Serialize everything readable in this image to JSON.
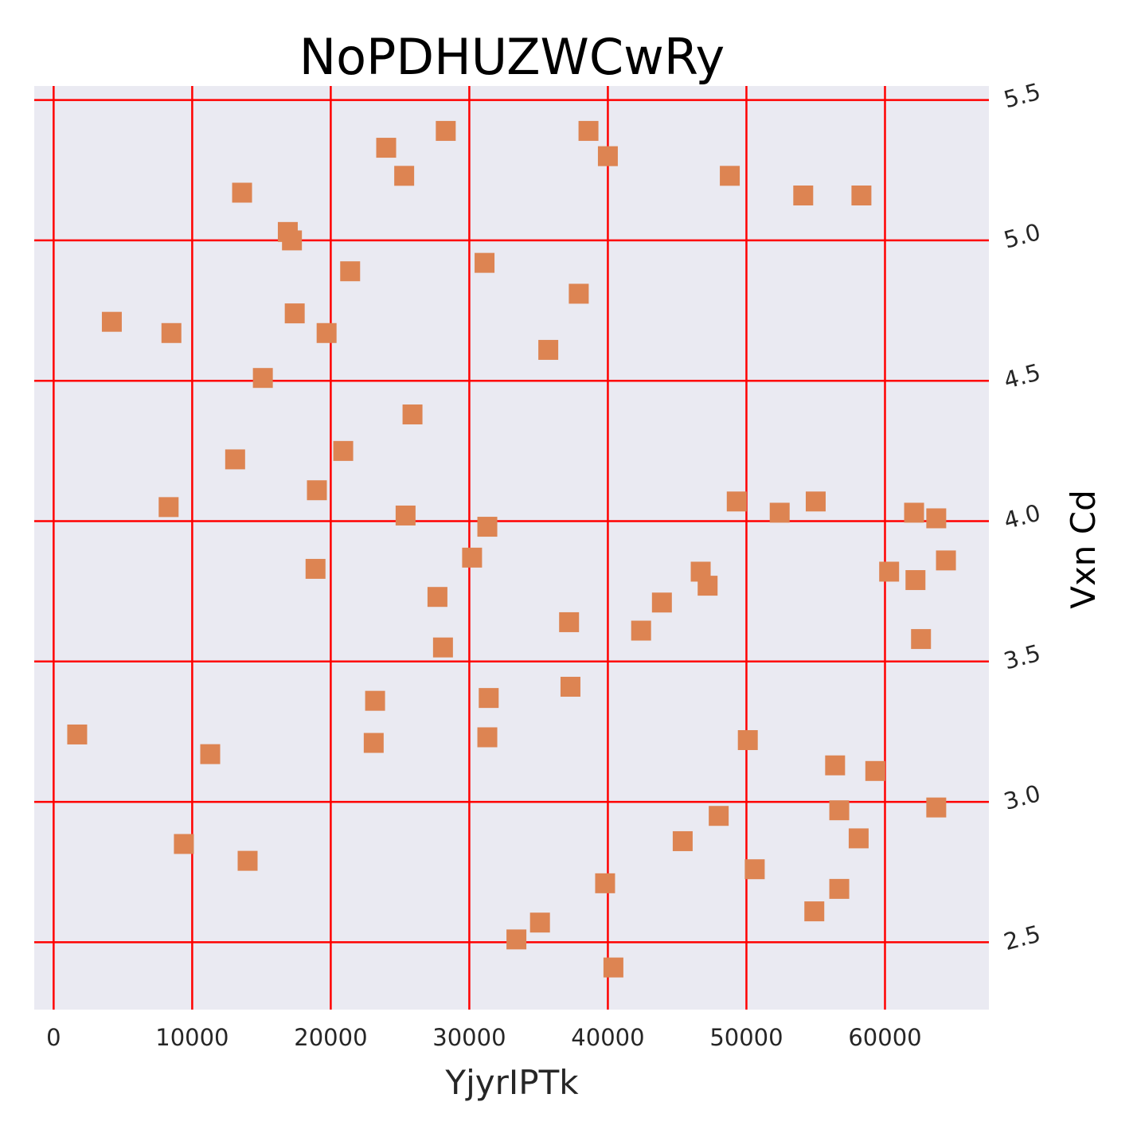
{
  "chart_data": {
    "type": "scatter",
    "title": "NoPDHUZWCwRy",
    "xlabel": "YjyrIPTk",
    "ylabel": "Vxn Cd",
    "xlim": [
      -1400,
      67500
    ],
    "ylim": [
      2.26,
      5.55
    ],
    "x_ticks": [
      0,
      10000,
      20000,
      30000,
      40000,
      50000,
      60000
    ],
    "y_ticks": [
      2.5,
      3.0,
      3.5,
      4.0,
      4.5,
      5.0,
      5.5
    ],
    "x_tick_labels": [
      "0",
      "10000",
      "20000",
      "30000",
      "40000",
      "50000",
      "60000"
    ],
    "y_tick_labels": [
      "2.5",
      "3.0",
      "3.5",
      "4.0",
      "4.5",
      "5.0",
      "5.5"
    ],
    "y_axis_position": "right",
    "grid": true,
    "legend": "none",
    "colors": {
      "background": "#eaeaf2",
      "grid": "#ff0000",
      "marker": "#dd8452"
    },
    "marker": "square",
    "points": [
      {
        "x": 1700,
        "y": 3.24
      },
      {
        "x": 4200,
        "y": 4.71
      },
      {
        "x": 8300,
        "y": 4.05
      },
      {
        "x": 8500,
        "y": 4.67
      },
      {
        "x": 9400,
        "y": 2.85
      },
      {
        "x": 11300,
        "y": 3.17
      },
      {
        "x": 13100,
        "y": 4.22
      },
      {
        "x": 13600,
        "y": 5.17
      },
      {
        "x": 14000,
        "y": 2.79
      },
      {
        "x": 15100,
        "y": 4.51
      },
      {
        "x": 16900,
        "y": 5.03
      },
      {
        "x": 17200,
        "y": 5.0
      },
      {
        "x": 17400,
        "y": 4.74
      },
      {
        "x": 18900,
        "y": 3.83
      },
      {
        "x": 19000,
        "y": 4.11
      },
      {
        "x": 19700,
        "y": 4.67
      },
      {
        "x": 20900,
        "y": 4.25
      },
      {
        "x": 21400,
        "y": 4.89
      },
      {
        "x": 23100,
        "y": 3.21
      },
      {
        "x": 23200,
        "y": 3.36
      },
      {
        "x": 24000,
        "y": 5.33
      },
      {
        "x": 25300,
        "y": 5.23
      },
      {
        "x": 25400,
        "y": 4.02
      },
      {
        "x": 25900,
        "y": 4.38
      },
      {
        "x": 27700,
        "y": 3.73
      },
      {
        "x": 28100,
        "y": 3.55
      },
      {
        "x": 28300,
        "y": 5.39
      },
      {
        "x": 30200,
        "y": 3.87
      },
      {
        "x": 31100,
        "y": 4.92
      },
      {
        "x": 31300,
        "y": 3.98
      },
      {
        "x": 31300,
        "y": 3.23
      },
      {
        "x": 31400,
        "y": 3.37
      },
      {
        "x": 33400,
        "y": 2.51
      },
      {
        "x": 35100,
        "y": 2.57
      },
      {
        "x": 35700,
        "y": 4.61
      },
      {
        "x": 37200,
        "y": 3.64
      },
      {
        "x": 37300,
        "y": 3.41
      },
      {
        "x": 37900,
        "y": 4.81
      },
      {
        "x": 38600,
        "y": 5.39
      },
      {
        "x": 39800,
        "y": 2.71
      },
      {
        "x": 40000,
        "y": 5.3
      },
      {
        "x": 40400,
        "y": 2.41
      },
      {
        "x": 42400,
        "y": 3.61
      },
      {
        "x": 43900,
        "y": 3.71
      },
      {
        "x": 45400,
        "y": 2.86
      },
      {
        "x": 46700,
        "y": 3.82
      },
      {
        "x": 47200,
        "y": 3.77
      },
      {
        "x": 48000,
        "y": 2.95
      },
      {
        "x": 48800,
        "y": 5.23
      },
      {
        "x": 49300,
        "y": 4.07
      },
      {
        "x": 50100,
        "y": 3.22
      },
      {
        "x": 50600,
        "y": 2.76
      },
      {
        "x": 52400,
        "y": 4.03
      },
      {
        "x": 54100,
        "y": 5.16
      },
      {
        "x": 54900,
        "y": 2.61
      },
      {
        "x": 55000,
        "y": 4.07
      },
      {
        "x": 56400,
        "y": 3.13
      },
      {
        "x": 56700,
        "y": 2.69
      },
      {
        "x": 56700,
        "y": 2.97
      },
      {
        "x": 58100,
        "y": 2.87
      },
      {
        "x": 58300,
        "y": 5.16
      },
      {
        "x": 59300,
        "y": 3.11
      },
      {
        "x": 60300,
        "y": 3.82
      },
      {
        "x": 62100,
        "y": 4.03
      },
      {
        "x": 62200,
        "y": 3.79
      },
      {
        "x": 62600,
        "y": 3.58
      },
      {
        "x": 63700,
        "y": 4.01
      },
      {
        "x": 63700,
        "y": 2.98
      },
      {
        "x": 64400,
        "y": 3.86
      }
    ]
  }
}
